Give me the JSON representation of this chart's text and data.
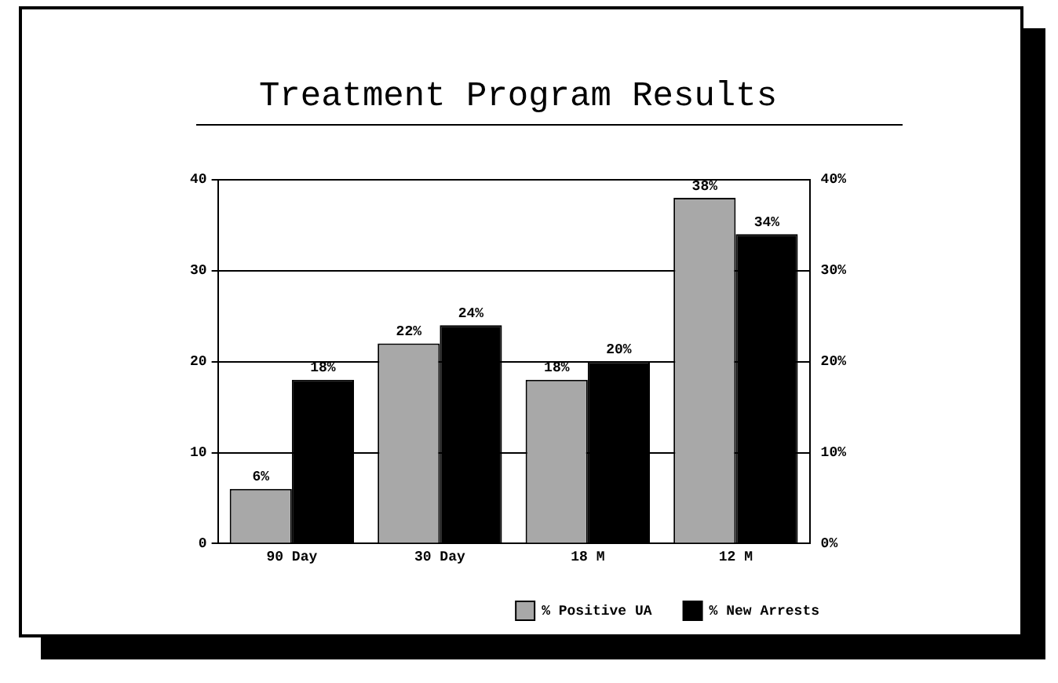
{
  "chart_data": {
    "type": "bar",
    "title": "Treatment Program Results",
    "categories": [
      "90 Day",
      "30 Day",
      "18 M",
      "12 M"
    ],
    "series": [
      {
        "name": "% Positive UA",
        "color": "#a8a8a8",
        "values": [
          6,
          22,
          18,
          38
        ],
        "value_labels": [
          "6%",
          "22%",
          "18%",
          "38%"
        ]
      },
      {
        "name": "% New Arrests",
        "color": "#000000",
        "values": [
          18,
          24,
          20,
          34
        ],
        "value_labels": [
          "18%",
          "24%",
          "20%",
          "34%"
        ]
      }
    ],
    "ylim": [
      0,
      40
    ],
    "yticks": [
      0,
      10,
      20,
      30,
      40
    ],
    "y2lim": [
      0,
      40
    ],
    "y2ticks": [
      {
        "value": 0,
        "label": "0%"
      },
      {
        "value": 10,
        "label": "10%"
      },
      {
        "value": 20,
        "label": "20%"
      },
      {
        "value": 30,
        "label": "30%"
      },
      {
        "value": 40,
        "label": "40%"
      }
    ],
    "grid": "y",
    "legend": "bottom right"
  }
}
